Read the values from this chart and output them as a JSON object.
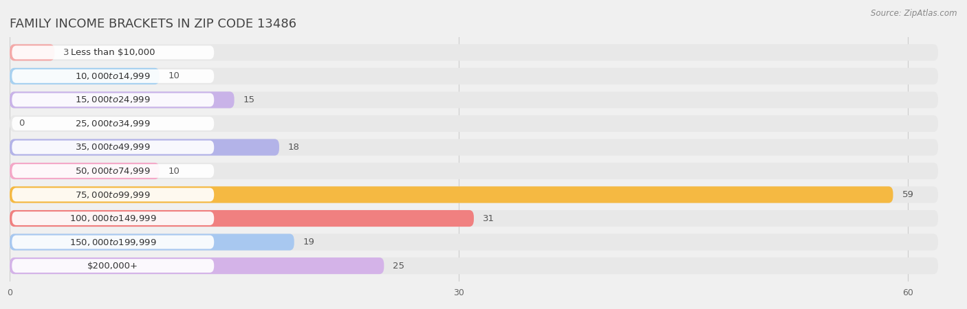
{
  "title": "FAMILY INCOME BRACKETS IN ZIP CODE 13486",
  "source": "Source: ZipAtlas.com",
  "categories": [
    "Less than $10,000",
    "$10,000 to $14,999",
    "$15,000 to $24,999",
    "$25,000 to $34,999",
    "$35,000 to $49,999",
    "$50,000 to $74,999",
    "$75,000 to $99,999",
    "$100,000 to $149,999",
    "$150,000 to $199,999",
    "$200,000+"
  ],
  "values": [
    3,
    10,
    15,
    0,
    18,
    10,
    59,
    31,
    19,
    25
  ],
  "bar_colors": [
    "#f4a9a8",
    "#a8d1f0",
    "#c9b3e8",
    "#7acfc4",
    "#b3b3e8",
    "#f4a8c8",
    "#f5b942",
    "#f08080",
    "#a8c8f0",
    "#d4b3e8"
  ],
  "xlim": [
    0,
    62
  ],
  "xticks": [
    0,
    30,
    60
  ],
  "bg_color": "#f0f0f0",
  "bar_bg_color": "#e8e8e8",
  "label_bg_color": "#fafafa",
  "title_fontsize": 13,
  "label_fontsize": 9.5,
  "value_fontsize": 9.5
}
